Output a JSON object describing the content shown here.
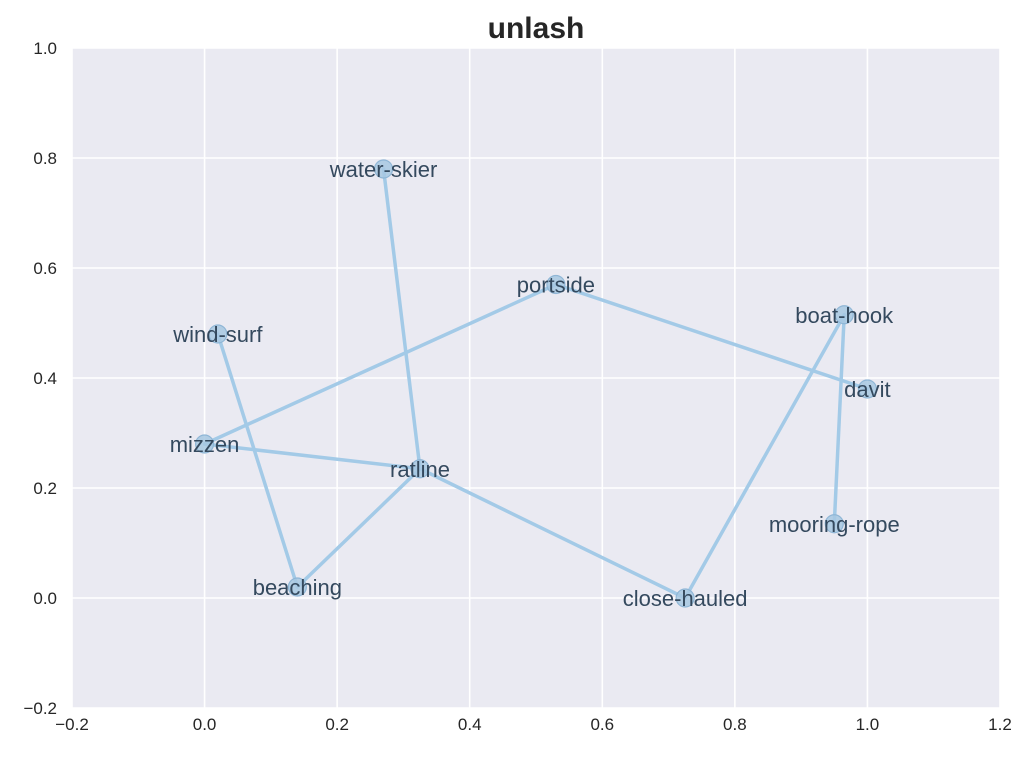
{
  "chart_data": {
    "type": "network",
    "title": "unlash",
    "xlim": [
      -0.2,
      1.2
    ],
    "ylim": [
      -0.2,
      1.0
    ],
    "xticks": [
      "−0.2",
      "0.0",
      "0.2",
      "0.4",
      "0.6",
      "0.8",
      "1.0",
      "1.2"
    ],
    "yticks": [
      "−0.2",
      "0.0",
      "0.2",
      "0.4",
      "0.6",
      "0.8",
      "1.0"
    ],
    "xtick_values": [
      -0.2,
      0.0,
      0.2,
      0.4,
      0.6,
      0.8,
      1.0,
      1.2
    ],
    "ytick_values": [
      -0.2,
      0.0,
      0.2,
      0.4,
      0.6,
      0.8,
      1.0
    ],
    "grid": true,
    "background": "#eaeaf2",
    "edge_color": "#a3cae7",
    "node_color": "#a7c8e2",
    "label_color": "#34495e",
    "nodes": [
      {
        "name": "water-skier",
        "x": 0.27,
        "y": 0.78
      },
      {
        "name": "portside",
        "x": 0.53,
        "y": 0.57
      },
      {
        "name": "boat-hook",
        "x": 0.965,
        "y": 0.515
      },
      {
        "name": "wind-surf",
        "x": 0.02,
        "y": 0.48
      },
      {
        "name": "davit",
        "x": 1.0,
        "y": 0.38
      },
      {
        "name": "mizzen",
        "x": 0.0,
        "y": 0.28
      },
      {
        "name": "ratline",
        "x": 0.325,
        "y": 0.235
      },
      {
        "name": "mooring-rope",
        "x": 0.95,
        "y": 0.135
      },
      {
        "name": "beaching",
        "x": 0.14,
        "y": 0.02
      },
      {
        "name": "close-hauled",
        "x": 0.725,
        "y": 0.0
      }
    ],
    "edges": [
      [
        "water-skier",
        "ratline"
      ],
      [
        "portside",
        "mizzen"
      ],
      [
        "portside",
        "davit"
      ],
      [
        "boat-hook",
        "mooring-rope"
      ],
      [
        "boat-hook",
        "close-hauled"
      ],
      [
        "wind-surf",
        "beaching"
      ],
      [
        "mizzen",
        "ratline"
      ],
      [
        "ratline",
        "beaching"
      ],
      [
        "ratline",
        "close-hauled"
      ]
    ]
  }
}
